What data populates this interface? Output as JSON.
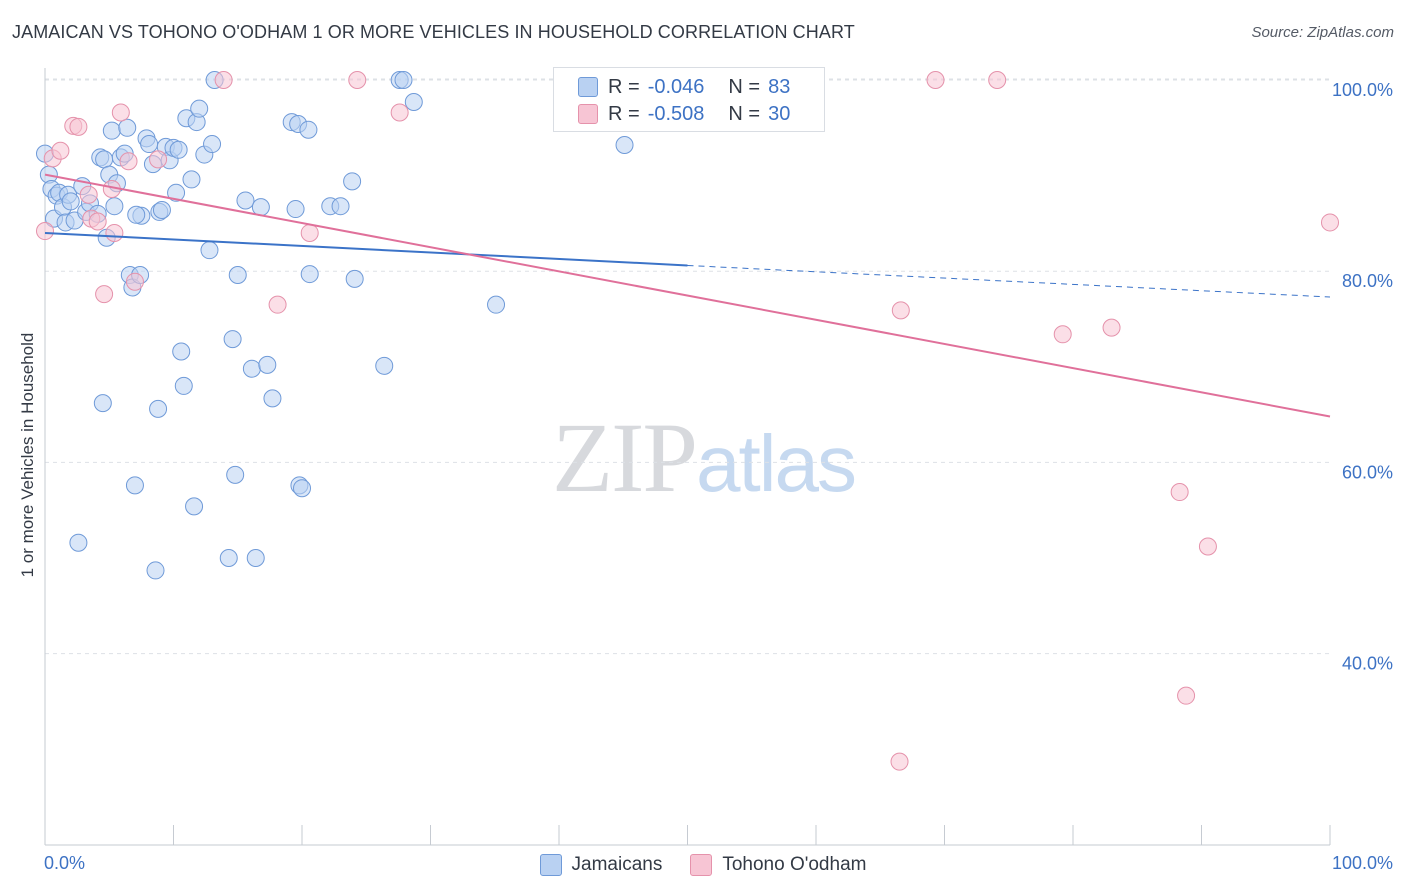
{
  "header": {
    "title": "JAMAICAN VS TOHONO O'ODHAM 1 OR MORE VEHICLES IN HOUSEHOLD CORRELATION CHART",
    "source": "Source: ZipAtlas.com"
  },
  "watermark": {
    "zip": "ZIP",
    "atlas": "atlas"
  },
  "legend_top": [
    {
      "r_label": "R =",
      "r_value": "-0.046",
      "n_label": "N =",
      "n_value": "83"
    },
    {
      "r_label": "R =",
      "r_value": "-0.508",
      "n_label": "N =",
      "n_value": "30"
    }
  ],
  "legend_bottom": [
    {
      "label": "Jamaicans"
    },
    {
      "label": "Tohono O'odham"
    }
  ],
  "colors": {
    "blue_fill": "#b9d1f2",
    "blue_stroke": "#6f9ad8",
    "blue_line": "#3b73c8",
    "pink_fill": "#f7c5d4",
    "pink_stroke": "#e592ab",
    "pink_line": "#e0709a",
    "tick_text": "#3d72c4",
    "grid": "#dde1e6"
  },
  "chart_data": {
    "type": "scatter",
    "title": "JAMAICAN VS TOHONO O'ODHAM 1 OR MORE VEHICLES IN HOUSEHOLD CORRELATION CHART",
    "xlabel": "",
    "ylabel": "1 or more Vehicles in Household",
    "xlim": [
      0,
      100
    ],
    "ylim": [
      20,
      102
    ],
    "x_tick_labels": [
      "0.0%",
      "100.0%"
    ],
    "y_ticks": [
      40,
      60,
      80,
      100
    ],
    "y_tick_labels": [
      "40.0%",
      "60.0%",
      "80.0%",
      "100.0%"
    ],
    "grid": true,
    "legend_placement": "top-center",
    "series": [
      {
        "name": "Jamaicans",
        "R": -0.046,
        "N": 83,
        "trend": {
          "x": [
            0,
            50
          ],
          "y": [
            84.0,
            80.6
          ],
          "dashed_to": [
            100,
            77.3
          ]
        },
        "points": [
          [
            0.0,
            92.3
          ],
          [
            0.3,
            90.1
          ],
          [
            0.5,
            88.6
          ],
          [
            0.7,
            85.5
          ],
          [
            0.9,
            87.9
          ],
          [
            1.1,
            88.2
          ],
          [
            1.4,
            86.7
          ],
          [
            1.6,
            85.1
          ],
          [
            1.8,
            88.0
          ],
          [
            2.0,
            87.3
          ],
          [
            2.3,
            85.3
          ],
          [
            2.6,
            51.6
          ],
          [
            2.9,
            88.9
          ],
          [
            3.2,
            86.2
          ],
          [
            3.5,
            87.1
          ],
          [
            4.1,
            86.0
          ],
          [
            4.3,
            91.9
          ],
          [
            4.6,
            91.7
          ],
          [
            4.5,
            66.2
          ],
          [
            4.8,
            83.5
          ],
          [
            5.0,
            90.1
          ],
          [
            5.2,
            94.7
          ],
          [
            5.4,
            86.8
          ],
          [
            5.6,
            89.2
          ],
          [
            5.9,
            91.9
          ],
          [
            6.2,
            92.3
          ],
          [
            6.4,
            95.0
          ],
          [
            6.6,
            79.6
          ],
          [
            6.8,
            78.3
          ],
          [
            7.0,
            57.6
          ],
          [
            7.4,
            79.6
          ],
          [
            7.5,
            85.8
          ],
          [
            7.9,
            93.9
          ],
          [
            8.1,
            93.3
          ],
          [
            8.4,
            91.2
          ],
          [
            8.6,
            48.7
          ],
          [
            8.8,
            65.6
          ],
          [
            8.9,
            86.2
          ],
          [
            9.1,
            86.4
          ],
          [
            9.4,
            93.0
          ],
          [
            9.7,
            91.6
          ],
          [
            10.0,
            92.9
          ],
          [
            10.2,
            88.2
          ],
          [
            10.4,
            92.7
          ],
          [
            10.6,
            71.6
          ],
          [
            10.8,
            68.0
          ],
          [
            11.0,
            96.0
          ],
          [
            11.4,
            89.6
          ],
          [
            11.6,
            55.4
          ],
          [
            11.8,
            95.6
          ],
          [
            12.0,
            97.0
          ],
          [
            12.4,
            92.2
          ],
          [
            12.8,
            82.2
          ],
          [
            13.0,
            93.3
          ],
          [
            13.2,
            100.0
          ],
          [
            14.3,
            50.0
          ],
          [
            14.6,
            72.9
          ],
          [
            14.8,
            58.7
          ],
          [
            15.0,
            79.6
          ],
          [
            15.6,
            87.4
          ],
          [
            16.1,
            69.8
          ],
          [
            16.8,
            86.7
          ],
          [
            17.3,
            70.2
          ],
          [
            17.7,
            66.7
          ],
          [
            19.2,
            95.6
          ],
          [
            19.5,
            86.5
          ],
          [
            19.7,
            95.4
          ],
          [
            19.8,
            57.6
          ],
          [
            20.0,
            57.3
          ],
          [
            20.5,
            94.8
          ],
          [
            20.6,
            79.7
          ],
          [
            22.2,
            86.8
          ],
          [
            23.0,
            86.8
          ],
          [
            23.9,
            89.4
          ],
          [
            24.1,
            79.2
          ],
          [
            26.4,
            70.1
          ],
          [
            27.6,
            100.0
          ],
          [
            27.9,
            100.0
          ],
          [
            28.7,
            97.7
          ],
          [
            35.1,
            76.5
          ],
          [
            45.1,
            93.2
          ],
          [
            16.4,
            50.0
          ],
          [
            7.1,
            85.9
          ]
        ]
      },
      {
        "name": "Tohono O'odham",
        "R": -0.508,
        "N": 30,
        "trend": {
          "x": [
            0,
            100
          ],
          "y": [
            90.1,
            64.8
          ]
        },
        "points": [
          [
            0.0,
            84.2
          ],
          [
            0.6,
            91.8
          ],
          [
            1.2,
            92.6
          ],
          [
            2.2,
            95.2
          ],
          [
            2.6,
            95.1
          ],
          [
            3.4,
            88.0
          ],
          [
            3.6,
            85.5
          ],
          [
            4.1,
            85.2
          ],
          [
            4.6,
            77.6
          ],
          [
            5.2,
            88.6
          ],
          [
            5.4,
            84.0
          ],
          [
            5.9,
            96.6
          ],
          [
            6.5,
            91.5
          ],
          [
            7.0,
            78.9
          ],
          [
            8.8,
            91.7
          ],
          [
            13.9,
            100.0
          ],
          [
            18.1,
            76.5
          ],
          [
            20.6,
            84.0
          ],
          [
            24.3,
            100.0
          ],
          [
            27.6,
            96.6
          ],
          [
            66.5,
            28.7
          ],
          [
            66.6,
            75.9
          ],
          [
            69.3,
            100.0
          ],
          [
            74.1,
            100.0
          ],
          [
            79.2,
            73.4
          ],
          [
            83.0,
            74.1
          ],
          [
            88.3,
            56.9
          ],
          [
            88.8,
            35.6
          ],
          [
            90.5,
            51.2
          ],
          [
            100.0,
            85.1
          ]
        ]
      }
    ]
  },
  "y_axis_label": "1 or more Vehicles in Household"
}
